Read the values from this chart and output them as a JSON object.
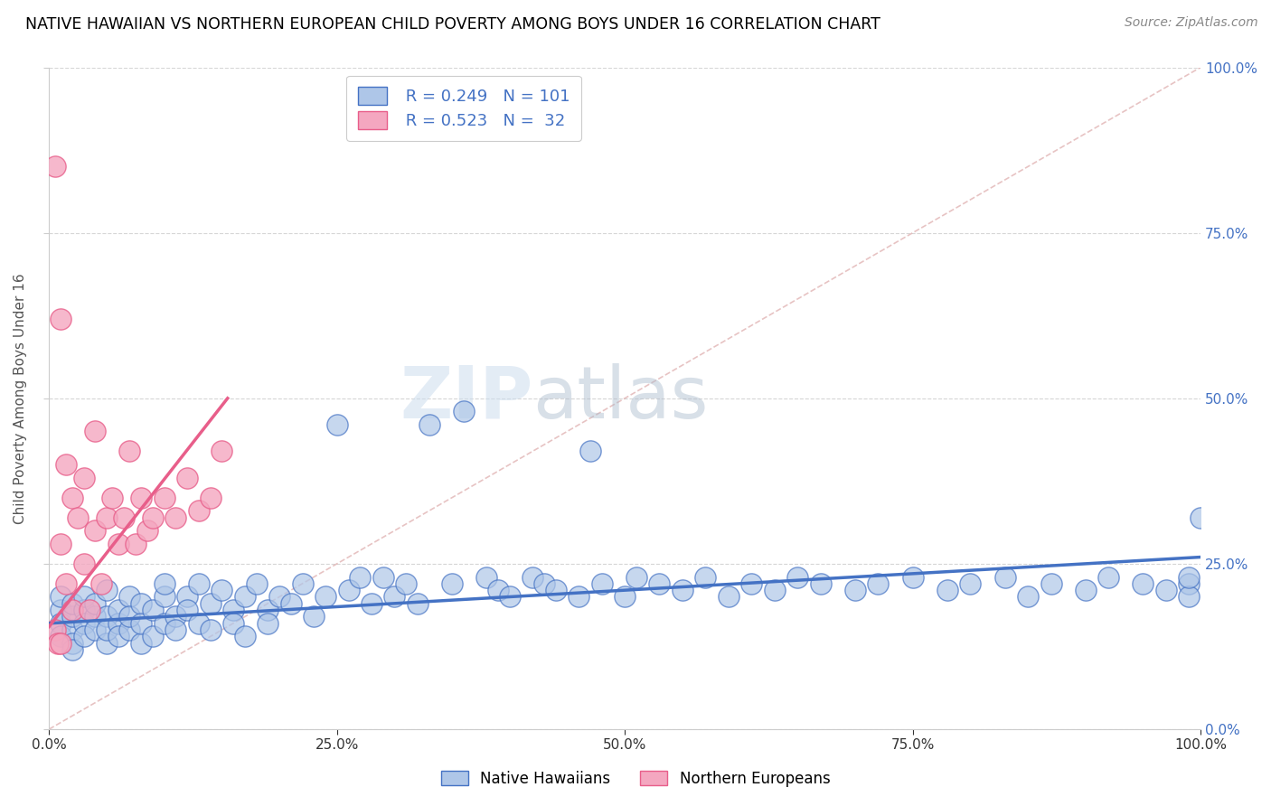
{
  "title": "NATIVE HAWAIIAN VS NORTHERN EUROPEAN CHILD POVERTY AMONG BOYS UNDER 16 CORRELATION CHART",
  "source": "Source: ZipAtlas.com",
  "ylabel": "Child Poverty Among Boys Under 16",
  "legend_labels": [
    "Native Hawaiians",
    "Northern Europeans"
  ],
  "r_nh": 0.249,
  "n_nh": 101,
  "r_ne": 0.523,
  "n_ne": 32,
  "xlim": [
    0.0,
    1.0
  ],
  "ylim": [
    0.0,
    1.0
  ],
  "xticks": [
    0.0,
    0.25,
    0.5,
    0.75,
    1.0
  ],
  "yticks": [
    0.0,
    0.25,
    0.5,
    0.75,
    1.0
  ],
  "xticklabels": [
    "0.0%",
    "25.0%",
    "50.0%",
    "75.0%",
    "100.0%"
  ],
  "right_yticklabels": [
    "0.0%",
    "25.0%",
    "50.0%",
    "75.0%",
    "100.0%"
  ],
  "blue_color": "#4472C4",
  "pink_color": "#E85E8A",
  "scatter_blue_face": "#AEC6E8",
  "scatter_blue_edge": "#4472C4",
  "scatter_pink_face": "#F4A7C0",
  "scatter_pink_edge": "#E85E8A",
  "watermark_zip": "ZIP",
  "watermark_atlas": "atlas",
  "grid_color": "#CCCCCC",
  "nh_x": [
    0.01,
    0.01,
    0.01,
    0.01,
    0.02,
    0.02,
    0.02,
    0.02,
    0.02,
    0.03,
    0.03,
    0.03,
    0.03,
    0.04,
    0.04,
    0.04,
    0.05,
    0.05,
    0.05,
    0.05,
    0.06,
    0.06,
    0.06,
    0.07,
    0.07,
    0.07,
    0.08,
    0.08,
    0.08,
    0.09,
    0.09,
    0.1,
    0.1,
    0.1,
    0.11,
    0.11,
    0.12,
    0.12,
    0.13,
    0.13,
    0.14,
    0.14,
    0.15,
    0.16,
    0.16,
    0.17,
    0.17,
    0.18,
    0.19,
    0.19,
    0.2,
    0.21,
    0.22,
    0.23,
    0.24,
    0.25,
    0.26,
    0.27,
    0.28,
    0.29,
    0.3,
    0.31,
    0.32,
    0.33,
    0.35,
    0.36,
    0.38,
    0.39,
    0.4,
    0.42,
    0.43,
    0.44,
    0.46,
    0.47,
    0.48,
    0.5,
    0.51,
    0.53,
    0.55,
    0.57,
    0.59,
    0.61,
    0.63,
    0.65,
    0.67,
    0.7,
    0.72,
    0.75,
    0.78,
    0.8,
    0.83,
    0.85,
    0.87,
    0.9,
    0.92,
    0.95,
    0.97,
    0.99,
    0.99,
    0.99,
    1.0
  ],
  "nh_y": [
    0.18,
    0.16,
    0.2,
    0.14,
    0.15,
    0.17,
    0.19,
    0.13,
    0.12,
    0.18,
    0.2,
    0.16,
    0.14,
    0.17,
    0.15,
    0.19,
    0.13,
    0.21,
    0.17,
    0.15,
    0.16,
    0.18,
    0.14,
    0.2,
    0.15,
    0.17,
    0.19,
    0.13,
    0.16,
    0.18,
    0.14,
    0.2,
    0.16,
    0.22,
    0.17,
    0.15,
    0.2,
    0.18,
    0.22,
    0.16,
    0.19,
    0.15,
    0.21,
    0.18,
    0.16,
    0.2,
    0.14,
    0.22,
    0.18,
    0.16,
    0.2,
    0.19,
    0.22,
    0.17,
    0.2,
    0.46,
    0.21,
    0.23,
    0.19,
    0.23,
    0.2,
    0.22,
    0.19,
    0.46,
    0.22,
    0.48,
    0.23,
    0.21,
    0.2,
    0.23,
    0.22,
    0.21,
    0.2,
    0.42,
    0.22,
    0.2,
    0.23,
    0.22,
    0.21,
    0.23,
    0.2,
    0.22,
    0.21,
    0.23,
    0.22,
    0.21,
    0.22,
    0.23,
    0.21,
    0.22,
    0.23,
    0.2,
    0.22,
    0.21,
    0.23,
    0.22,
    0.21,
    0.22,
    0.2,
    0.23,
    0.32
  ],
  "ne_x": [
    0.005,
    0.005,
    0.008,
    0.01,
    0.01,
    0.01,
    0.015,
    0.015,
    0.02,
    0.02,
    0.025,
    0.03,
    0.03,
    0.035,
    0.04,
    0.04,
    0.045,
    0.05,
    0.055,
    0.06,
    0.065,
    0.07,
    0.075,
    0.08,
    0.085,
    0.09,
    0.1,
    0.11,
    0.12,
    0.13,
    0.14,
    0.15
  ],
  "ne_y": [
    0.85,
    0.15,
    0.13,
    0.62,
    0.28,
    0.13,
    0.22,
    0.4,
    0.18,
    0.35,
    0.32,
    0.25,
    0.38,
    0.18,
    0.3,
    0.45,
    0.22,
    0.32,
    0.35,
    0.28,
    0.32,
    0.42,
    0.28,
    0.35,
    0.3,
    0.32,
    0.35,
    0.32,
    0.38,
    0.33,
    0.35,
    0.42
  ],
  "nh_trend_x": [
    0.0,
    1.0
  ],
  "nh_trend_y": [
    0.16,
    0.26
  ],
  "ne_trend_x": [
    0.0,
    0.155
  ],
  "ne_trend_y": [
    0.155,
    0.5
  ]
}
